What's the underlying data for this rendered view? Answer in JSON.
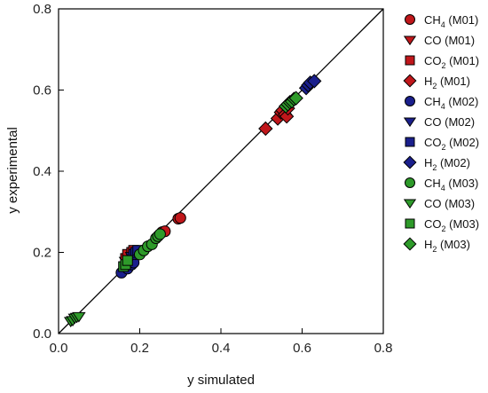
{
  "chart_data": {
    "type": "scatter",
    "title": "",
    "xlabel": "y simulated",
    "ylabel": "y experimental",
    "xlim": [
      0,
      0.8
    ],
    "ylim": [
      0,
      0.8
    ],
    "x_ticks": [
      "0.0",
      "0.2",
      "0.4",
      "0.6",
      "0.8"
    ],
    "y_ticks": [
      "0.0",
      "0.2",
      "0.4",
      "0.6",
      "0.8"
    ],
    "grid": false,
    "legend_position": "right",
    "reference_line": {
      "type": "parity",
      "from": [
        0,
        0
      ],
      "to": [
        0.8,
        0.8
      ]
    },
    "colors": {
      "M01": "#c0171b",
      "M02": "#1a1f8c",
      "M03": "#2e9a2a"
    },
    "series": [
      {
        "name": "CH4 (M01)",
        "species": "CH",
        "sub": "4",
        "model": "(M01)",
        "marker": "circle",
        "group": "M01",
        "points": [
          [
            0.255,
            0.25
          ],
          [
            0.262,
            0.252
          ],
          [
            0.295,
            0.283
          ],
          [
            0.3,
            0.285
          ]
        ]
      },
      {
        "name": "CO (M01)",
        "species": "CO",
        "sub": "",
        "model": "(M01)",
        "marker": "triangle",
        "group": "M01",
        "points": [
          [
            0.165,
            0.178
          ],
          [
            0.175,
            0.19
          ]
        ]
      },
      {
        "name": "CO2 (M01)",
        "species": "CO",
        "sub": "2",
        "model": "(M01)",
        "marker": "square",
        "group": "M01",
        "points": [
          [
            0.165,
            0.185
          ],
          [
            0.17,
            0.195
          ],
          [
            0.18,
            0.2
          ],
          [
            0.185,
            0.205
          ]
        ]
      },
      {
        "name": "H2 (M01)",
        "species": "H",
        "sub": "2",
        "model": "(M01)",
        "marker": "diamond",
        "group": "M01",
        "points": [
          [
            0.51,
            0.505
          ],
          [
            0.54,
            0.53
          ],
          [
            0.548,
            0.545
          ],
          [
            0.552,
            0.55
          ],
          [
            0.558,
            0.54
          ],
          [
            0.562,
            0.535
          ],
          [
            0.565,
            0.555
          ]
        ]
      },
      {
        "name": "CH4 (M02)",
        "species": "CH",
        "sub": "4",
        "model": "(M02)",
        "marker": "circle",
        "group": "M02",
        "points": [
          [
            0.155,
            0.15
          ],
          [
            0.17,
            0.16
          ],
          [
            0.18,
            0.17
          ],
          [
            0.185,
            0.175
          ]
        ]
      },
      {
        "name": "CO (M02)",
        "species": "CO",
        "sub": "",
        "model": "(M02)",
        "marker": "triangle",
        "group": "M02",
        "points": [
          [
            0.18,
            0.19
          ],
          [
            0.19,
            0.195
          ]
        ]
      },
      {
        "name": "CO2 (M02)",
        "species": "CO",
        "sub": "2",
        "model": "(M02)",
        "marker": "square",
        "group": "M02",
        "points": [
          [
            0.185,
            0.195
          ],
          [
            0.19,
            0.2
          ],
          [
            0.195,
            0.205
          ]
        ]
      },
      {
        "name": "H2 (M02)",
        "species": "H",
        "sub": "2",
        "model": "(M02)",
        "marker": "diamond",
        "group": "M02",
        "points": [
          [
            0.61,
            0.605
          ],
          [
            0.615,
            0.612
          ],
          [
            0.62,
            0.618
          ],
          [
            0.63,
            0.622
          ]
        ]
      },
      {
        "name": "CH4 (M03)",
        "species": "CH",
        "sub": "4",
        "model": "(M03)",
        "marker": "circle",
        "group": "M03",
        "points": [
          [
            0.2,
            0.195
          ],
          [
            0.21,
            0.205
          ],
          [
            0.22,
            0.215
          ],
          [
            0.23,
            0.22
          ],
          [
            0.24,
            0.235
          ],
          [
            0.245,
            0.24
          ],
          [
            0.25,
            0.245
          ]
        ]
      },
      {
        "name": "CO (M03)",
        "species": "CO",
        "sub": "",
        "model": "(M03)",
        "marker": "triangle",
        "group": "M03",
        "points": [
          [
            0.03,
            0.03
          ],
          [
            0.035,
            0.032
          ],
          [
            0.04,
            0.038
          ],
          [
            0.045,
            0.04
          ],
          [
            0.05,
            0.042
          ]
        ]
      },
      {
        "name": "CO2 (M03)",
        "species": "CO",
        "sub": "2",
        "model": "(M03)",
        "marker": "square",
        "group": "M03",
        "points": [
          [
            0.16,
            0.165
          ],
          [
            0.165,
            0.17
          ],
          [
            0.17,
            0.18
          ]
        ]
      },
      {
        "name": "H2 (M03)",
        "species": "H",
        "sub": "2",
        "model": "(M03)",
        "marker": "diamond",
        "group": "M03",
        "points": [
          [
            0.56,
            0.56
          ],
          [
            0.565,
            0.565
          ],
          [
            0.57,
            0.57
          ],
          [
            0.575,
            0.572
          ],
          [
            0.58,
            0.578
          ],
          [
            0.585,
            0.58
          ]
        ]
      }
    ]
  }
}
